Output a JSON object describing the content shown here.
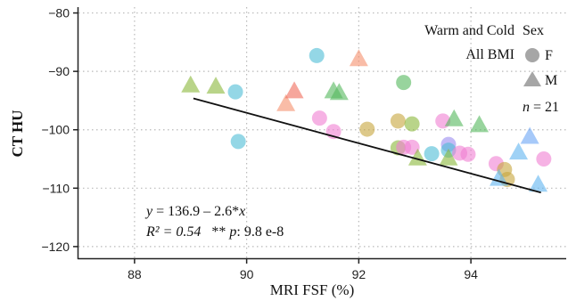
{
  "chart_data": {
    "type": "scatter",
    "xlabel": "MRI FSF (%)",
    "ylabel": "CT HU",
    "xlim": [
      87,
      95.7
    ],
    "ylim": [
      -122,
      -79
    ],
    "xticks": [
      88,
      90,
      92,
      94
    ],
    "yticks": [
      -80,
      -90,
      -100,
      -110,
      -120
    ],
    "xtick_labels": [
      "88",
      "90",
      "92",
      "94"
    ],
    "ytick_labels": [
      "−80",
      "−90",
      "−100",
      "−110",
      "−120"
    ],
    "grid": true,
    "legend": {
      "title": "Sex",
      "placement": "top-right",
      "entries": [
        {
          "shape": "circle",
          "label": "F"
        },
        {
          "shape": "triangle",
          "label": "M"
        }
      ]
    },
    "annotations": {
      "group_line1": "Warm and Cold",
      "group_line2": "All BMI",
      "n_var": "n",
      "n_value": " = 21",
      "eq_var_y": "y",
      "eq_rest_a": " = 136.9 – 2.6*",
      "eq_var_x": "x",
      "r2_text": "R² = 0.54",
      "p_stars": "   ** ",
      "p_var": "p",
      "p_rest": ": 9.8 e-8"
    },
    "regression": {
      "slope": -2.6,
      "intercept": 136.9,
      "x_range": [
        89.05,
        95.25
      ]
    },
    "points": [
      {
        "x": 89.8,
        "y": -93.5,
        "shape": "circle",
        "color": "#4cbcd6"
      },
      {
        "x": 89.85,
        "y": -102.0,
        "shape": "circle",
        "color": "#4cbcd6"
      },
      {
        "x": 91.25,
        "y": -87.3,
        "shape": "circle",
        "color": "#4cbcd6"
      },
      {
        "x": 91.3,
        "y": -98.0,
        "shape": "circle",
        "color": "#f07fd2"
      },
      {
        "x": 91.55,
        "y": -100.3,
        "shape": "circle",
        "color": "#f07fd2"
      },
      {
        "x": 92.15,
        "y": -99.9,
        "shape": "circle",
        "color": "#c7a53c"
      },
      {
        "x": 92.7,
        "y": -98.5,
        "shape": "circle",
        "color": "#c7a53c"
      },
      {
        "x": 92.7,
        "y": -103.1,
        "shape": "circle",
        "color": "#8bb83b"
      },
      {
        "x": 92.8,
        "y": -103.0,
        "shape": "circle",
        "color": "#f07fd2"
      },
      {
        "x": 92.8,
        "y": -91.9,
        "shape": "circle",
        "color": "#53b85c"
      },
      {
        "x": 92.95,
        "y": -99.0,
        "shape": "circle",
        "color": "#8bb83b"
      },
      {
        "x": 92.95,
        "y": -103.0,
        "shape": "circle",
        "color": "#f07fd2"
      },
      {
        "x": 93.3,
        "y": -104.1,
        "shape": "circle",
        "color": "#4cbcd6"
      },
      {
        "x": 93.5,
        "y": -98.5,
        "shape": "circle",
        "color": "#f07fd2"
      },
      {
        "x": 93.6,
        "y": -102.5,
        "shape": "circle",
        "color": "#9b8cf0"
      },
      {
        "x": 93.6,
        "y": -103.5,
        "shape": "circle",
        "color": "#4cbcd6"
      },
      {
        "x": 93.8,
        "y": -104.0,
        "shape": "circle",
        "color": "#f07fd2"
      },
      {
        "x": 93.95,
        "y": -104.2,
        "shape": "circle",
        "color": "#f07fd2"
      },
      {
        "x": 94.45,
        "y": -105.8,
        "shape": "circle",
        "color": "#f07fd2"
      },
      {
        "x": 94.6,
        "y": -106.8,
        "shape": "circle",
        "color": "#c7a53c"
      },
      {
        "x": 94.65,
        "y": -108.5,
        "shape": "circle",
        "color": "#c7a53c"
      },
      {
        "x": 95.3,
        "y": -105.0,
        "shape": "circle",
        "color": "#f07fd2"
      },
      {
        "x": 89.0,
        "y": -92.5,
        "shape": "triangle",
        "color": "#8bb83b"
      },
      {
        "x": 89.45,
        "y": -92.7,
        "shape": "triangle",
        "color": "#8bb83b"
      },
      {
        "x": 90.7,
        "y": -95.7,
        "shape": "triangle",
        "color": "#f58f6d"
      },
      {
        "x": 90.85,
        "y": -93.5,
        "shape": "triangle",
        "color": "#f06a5a"
      },
      {
        "x": 91.55,
        "y": -93.5,
        "shape": "triangle",
        "color": "#53b85c"
      },
      {
        "x": 91.65,
        "y": -93.8,
        "shape": "triangle",
        "color": "#53b85c"
      },
      {
        "x": 92.0,
        "y": -88.0,
        "shape": "triangle",
        "color": "#f58f6d"
      },
      {
        "x": 93.05,
        "y": -105.0,
        "shape": "triangle",
        "color": "#8bb83b"
      },
      {
        "x": 93.6,
        "y": -105.0,
        "shape": "triangle",
        "color": "#8bb83b"
      },
      {
        "x": 93.7,
        "y": -98.3,
        "shape": "triangle",
        "color": "#53b85c"
      },
      {
        "x": 94.15,
        "y": -99.3,
        "shape": "triangle",
        "color": "#53b85c"
      },
      {
        "x": 94.5,
        "y": -108.5,
        "shape": "triangle",
        "color": "#5fb4f0"
      },
      {
        "x": 94.85,
        "y": -104.0,
        "shape": "triangle",
        "color": "#5fb4f0"
      },
      {
        "x": 95.05,
        "y": -101.3,
        "shape": "triangle",
        "color": "#6aa5f5"
      },
      {
        "x": 95.2,
        "y": -109.5,
        "shape": "triangle",
        "color": "#5fb4f0"
      }
    ]
  }
}
